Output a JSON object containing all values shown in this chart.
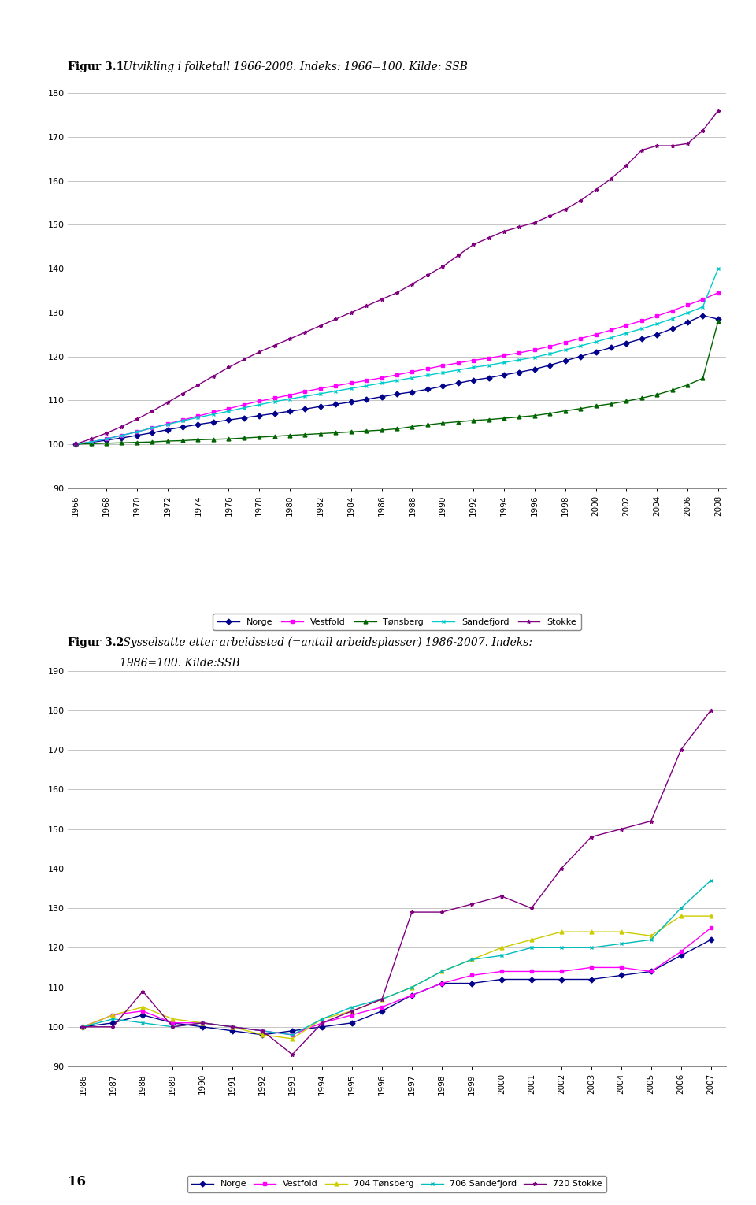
{
  "chart1": {
    "title_bold": "Figur 3.1",
    "title_italic": " Utvikling i folketall 1966-2008. Indeks: 1966=100. Kilde: SSB",
    "years": [
      1966,
      1967,
      1968,
      1969,
      1970,
      1971,
      1972,
      1973,
      1974,
      1975,
      1976,
      1977,
      1978,
      1979,
      1980,
      1981,
      1982,
      1983,
      1984,
      1985,
      1986,
      1987,
      1988,
      1989,
      1990,
      1991,
      1992,
      1993,
      1994,
      1995,
      1996,
      1997,
      1998,
      1999,
      2000,
      2001,
      2002,
      2003,
      2004,
      2005,
      2006,
      2007,
      2008
    ],
    "Norge": [
      100,
      100.4,
      100.9,
      101.4,
      102.0,
      102.6,
      103.3,
      103.9,
      104.5,
      105.0,
      105.5,
      106.0,
      106.5,
      107.0,
      107.5,
      108.0,
      108.6,
      109.1,
      109.6,
      110.2,
      110.8,
      111.4,
      111.9,
      112.5,
      113.2,
      113.9,
      114.6,
      115.1,
      115.8,
      116.4,
      117.1,
      118.0,
      119.0,
      120.0,
      121.0,
      122.0,
      123.0,
      124.0,
      125.0,
      126.3,
      127.8,
      129.3,
      128.5
    ],
    "Vestfold": [
      100,
      100.5,
      101.2,
      102.0,
      102.8,
      103.7,
      104.6,
      105.5,
      106.4,
      107.3,
      108.1,
      109.0,
      109.8,
      110.5,
      111.2,
      112.0,
      112.7,
      113.3,
      113.9,
      114.5,
      115.1,
      115.8,
      116.5,
      117.2,
      117.9,
      118.5,
      119.1,
      119.6,
      120.2,
      120.8,
      121.5,
      122.3,
      123.2,
      124.1,
      125.0,
      126.0,
      127.1,
      128.1,
      129.2,
      130.4,
      131.7,
      133.0,
      134.5
    ],
    "Tonsberg": [
      100,
      100.1,
      100.2,
      100.3,
      100.4,
      100.5,
      100.7,
      100.8,
      101.0,
      101.1,
      101.2,
      101.4,
      101.6,
      101.8,
      102.0,
      102.2,
      102.4,
      102.6,
      102.8,
      103.0,
      103.2,
      103.5,
      104.0,
      104.4,
      104.8,
      105.1,
      105.4,
      105.6,
      105.9,
      106.2,
      106.5,
      107.0,
      107.6,
      108.1,
      108.7,
      109.2,
      109.8,
      110.5,
      111.3,
      112.3,
      113.5,
      115.0,
      128.0
    ],
    "Sandefjord": [
      100,
      100.5,
      101.2,
      102.0,
      102.8,
      103.7,
      104.5,
      105.3,
      106.1,
      106.8,
      107.5,
      108.3,
      109.0,
      109.7,
      110.3,
      110.9,
      111.5,
      112.1,
      112.7,
      113.3,
      113.9,
      114.5,
      115.1,
      115.7,
      116.3,
      116.9,
      117.5,
      118.0,
      118.6,
      119.2,
      119.8,
      120.6,
      121.5,
      122.4,
      123.3,
      124.3,
      125.3,
      126.3,
      127.4,
      128.6,
      129.9,
      131.3,
      140.0
    ],
    "Stokke": [
      100,
      101.2,
      102.5,
      104.0,
      105.7,
      107.5,
      109.5,
      111.5,
      113.5,
      115.5,
      117.5,
      119.3,
      121.0,
      122.5,
      124.0,
      125.5,
      127.0,
      128.5,
      130.0,
      131.5,
      133.0,
      134.5,
      136.5,
      138.5,
      140.5,
      143.0,
      145.5,
      147.0,
      148.5,
      149.5,
      150.5,
      152.0,
      153.5,
      155.5,
      158.0,
      160.5,
      163.5,
      167.0,
      168.0,
      168.0,
      168.5,
      171.5,
      176.0
    ],
    "ylim": [
      90,
      182
    ],
    "yticks": [
      90,
      100,
      110,
      120,
      130,
      140,
      150,
      160,
      170,
      180
    ],
    "colors": {
      "Norge": "#00008B",
      "Vestfold": "#FF00FF",
      "Tonsberg": "#006400",
      "Sandefjord": "#00CCCC",
      "Stokke": "#800080"
    },
    "markers": {
      "Norge": "D",
      "Vestfold": "s",
      "Tonsberg": "^",
      "Sandefjord": "x",
      "Stokke": "*"
    },
    "legend_labels": [
      "Norge",
      "Vestfold",
      "Tønsberg",
      "Sandefjord",
      "Stokke"
    ]
  },
  "chart2": {
    "title_bold": "Figur 3.2",
    "title_italic": " Sysselsatte etter arbeidssted (=antall arbeidsplasser) 1986-2007. Indeks:",
    "title_line2": "1986=100. Kilde:SSB",
    "years": [
      1986,
      1987,
      1988,
      1989,
      1990,
      1991,
      1992,
      1993,
      1994,
      1995,
      1996,
      1997,
      1998,
      1999,
      2000,
      2001,
      2002,
      2003,
      2004,
      2005,
      2006,
      2007
    ],
    "Norge": [
      100,
      101,
      103,
      101,
      100,
      99,
      98,
      99,
      100,
      101,
      104,
      108,
      111,
      111,
      112,
      112,
      112,
      112,
      113,
      114,
      118,
      122
    ],
    "Vestfold": [
      100,
      103,
      104,
      101,
      101,
      100,
      99,
      98,
      101,
      103,
      105,
      108,
      111,
      113,
      114,
      114,
      114,
      115,
      115,
      114,
      119,
      125
    ],
    "Tonsberg": [
      100,
      103,
      105,
      102,
      101,
      100,
      98,
      97,
      102,
      104,
      107,
      110,
      114,
      117,
      120,
      122,
      124,
      124,
      124,
      123,
      128,
      128
    ],
    "Sandefjord": [
      100,
      102,
      101,
      100,
      101,
      100,
      99,
      98,
      102,
      105,
      107,
      110,
      114,
      117,
      118,
      120,
      120,
      120,
      121,
      122,
      130,
      137
    ],
    "Stokke": [
      100,
      100,
      109,
      100,
      101,
      100,
      99,
      93,
      101,
      104,
      107,
      129,
      129,
      131,
      133,
      130,
      140,
      148,
      150,
      152,
      170,
      180
    ],
    "ylim": [
      90,
      192
    ],
    "yticks": [
      90,
      100,
      110,
      120,
      130,
      140,
      150,
      160,
      170,
      180,
      190
    ],
    "colors": {
      "Norge": "#00008B",
      "Vestfold": "#FF00FF",
      "Tonsberg": "#CCCC00",
      "Sandefjord": "#00BBBB",
      "Stokke": "#800080"
    },
    "markers": {
      "Norge": "D",
      "Vestfold": "s",
      "Tonsberg": "^",
      "Sandefjord": "x",
      "Stokke": "*"
    },
    "legend_labels": [
      "Norge",
      "Vestfold",
      "704 Tønsberg",
      "706 Sandefjord",
      "720 Stokke"
    ]
  },
  "background_color": "#FFFFFF",
  "grid_color": "#BBBBBB",
  "font_family": "serif",
  "page_number": "16"
}
